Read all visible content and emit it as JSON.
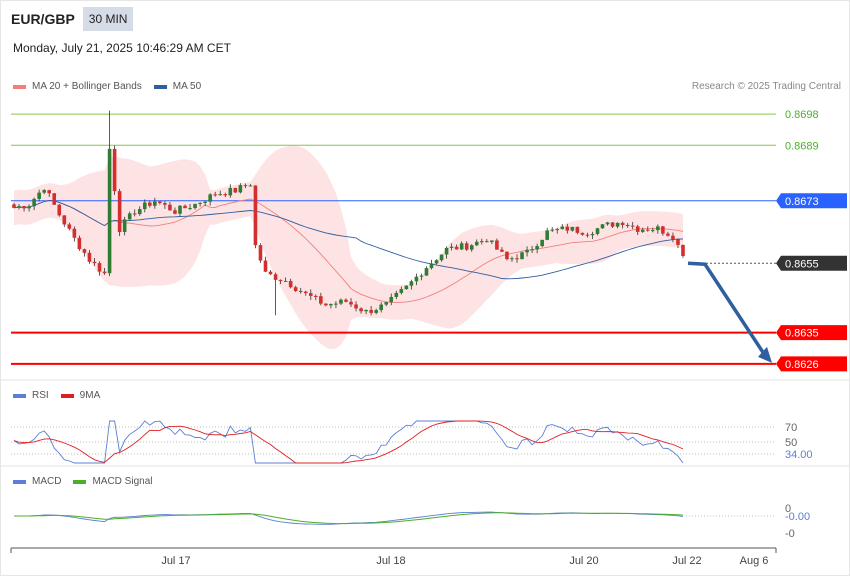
{
  "header": {
    "symbol": "EUR/GBP",
    "timeframe": "30 MIN",
    "datetime": "Monday, July 21, 2025 10:46:29 AM CET",
    "copyright": "Research © 2025 Trading Central"
  },
  "legend_main": [
    {
      "label": "MA 20 + Bollinger Bands",
      "color": "#f08080"
    },
    {
      "label": "MA 50",
      "color": "#2f5f9e"
    }
  ],
  "legend_rsi": [
    {
      "label": "RSI",
      "color": "#5b7fd4"
    },
    {
      "label": "9MA",
      "color": "#e02020"
    }
  ],
  "legend_macd": [
    {
      "label": "MACD",
      "color": "#5b7fd4"
    },
    {
      "label": "MACD Signal",
      "color": "#4caf2a"
    }
  ],
  "colors": {
    "bull": "#2e7d32",
    "bear": "#d32f2f",
    "bb_fill": "#fde3e3",
    "ma20": "#f08080",
    "ma50": "#2f5f9e",
    "resistance": "#8bc34a",
    "pivot": "#2962ff",
    "support": "#ff0000",
    "current": "#333333",
    "arrow": "#2f5f9e",
    "rsi": "#5b7fd4",
    "rsi_ma": "#e02020",
    "macd": "#5b7fd4",
    "macd_signal": "#4caf2a"
  },
  "chart_data": [
    {
      "type": "candlestick",
      "name": "price",
      "ylim": [
        0.86225,
        0.87035
      ],
      "levels": [
        {
          "value": 0.8698,
          "label": "0.8698",
          "kind": "resistance"
        },
        {
          "value": 0.8689,
          "label": "0.8689",
          "kind": "resistance"
        },
        {
          "value": 0.8673,
          "label": "0.8673",
          "kind": "pivot"
        },
        {
          "value": 0.8655,
          "label": "0.8655",
          "kind": "current"
        },
        {
          "value": 0.8635,
          "label": "0.8635",
          "kind": "support"
        },
        {
          "value": 0.8626,
          "label": "0.8626",
          "kind": "support"
        }
      ],
      "forecast": {
        "from": 0.8655,
        "to": 0.8626
      }
    },
    {
      "type": "line",
      "name": "RSI",
      "levels": [
        {
          "value": 70,
          "label": "70"
        },
        {
          "value": 50,
          "label": "50"
        },
        {
          "value": 34.0,
          "label": "34.00"
        }
      ]
    },
    {
      "type": "line",
      "name": "MACD",
      "levels": [
        {
          "value": 0,
          "label": "0"
        },
        {
          "value": -0.0,
          "label": "-0.00"
        },
        {
          "value": 0,
          "label": "-0"
        }
      ]
    }
  ],
  "x_axis": {
    "ticks": [
      {
        "label": "Jul 17"
      },
      {
        "label": "Jul 18"
      },
      {
        "label": "Jul 20"
      },
      {
        "label": "Jul 22"
      },
      {
        "label": "Aug 6"
      }
    ]
  }
}
